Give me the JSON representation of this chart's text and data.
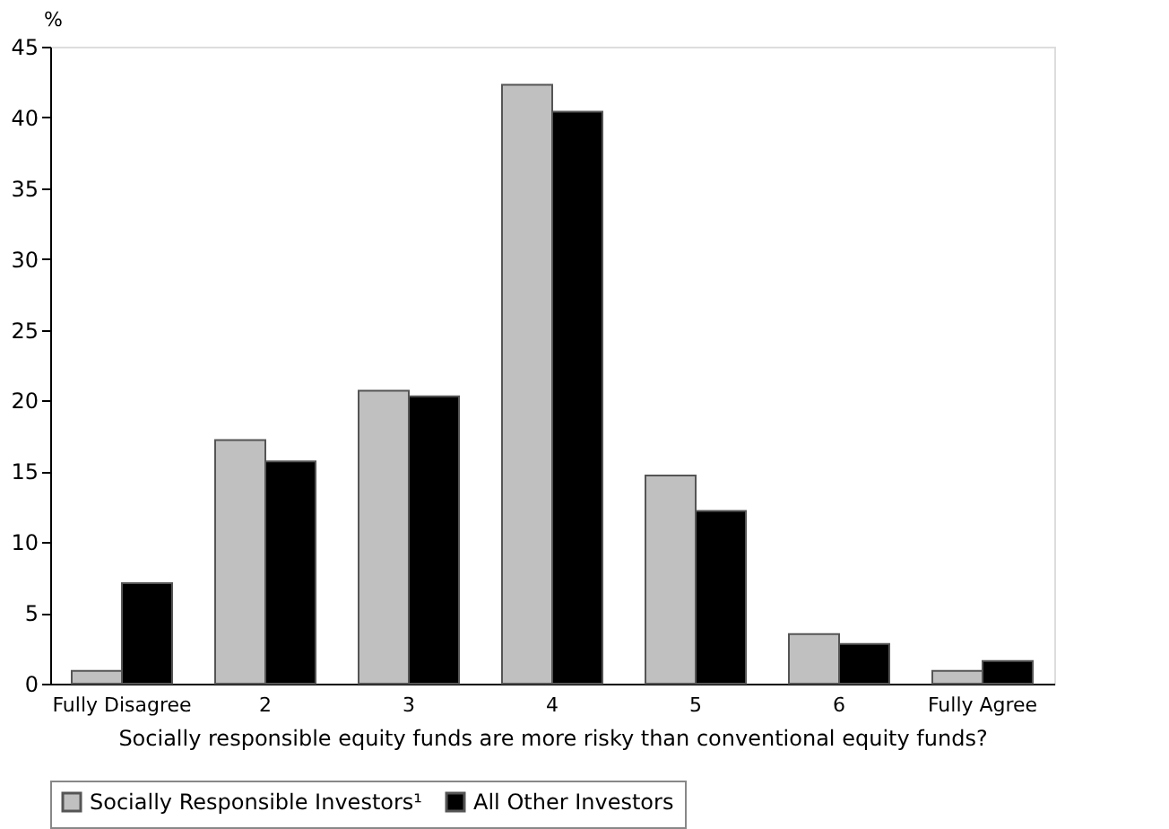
{
  "chart_data": {
    "type": "bar",
    "categories": [
      "Fully Disagree",
      "2",
      "3",
      "4",
      "5",
      "6",
      "Fully Agree"
    ],
    "series": [
      {
        "name": "Socially Responsible Investors¹",
        "color": "#c0c0c0",
        "values": [
          0.9,
          17.2,
          20.7,
          42.3,
          14.7,
          3.5,
          0.9
        ]
      },
      {
        "name": "All Other Investors",
        "color": "#000000",
        "values": [
          7.1,
          15.7,
          20.3,
          40.4,
          12.2,
          2.8,
          1.6
        ]
      }
    ],
    "ylabel": "%",
    "xlabel": "Socially responsible equity funds are more risky than conventional equity funds?",
    "ylim": [
      0,
      45
    ],
    "yticks": [
      0,
      5,
      10,
      15,
      20,
      25,
      30,
      35,
      40,
      45
    ],
    "grid": false,
    "legend": "bottom"
  }
}
